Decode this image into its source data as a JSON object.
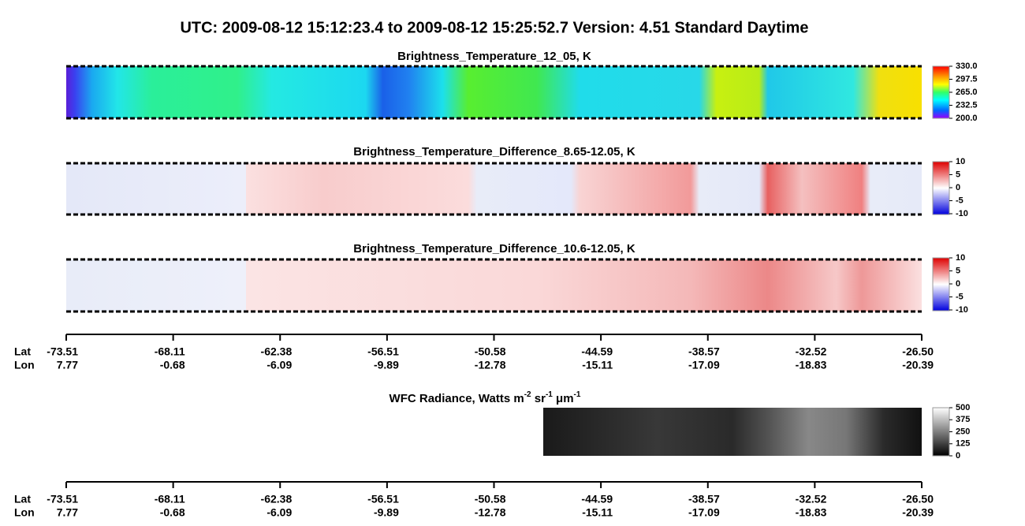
{
  "title": "UTC:  2009-08-12   15:12:23.4  to  2009-08-12   15:25:52.7    Version: 4.51  Standard Daytime",
  "panels": [
    {
      "title": "Brightness_Temperature_12_05, K",
      "colorbar_labels": [
        "330.0",
        "297.5",
        "265.0",
        "232.5",
        "200.0"
      ]
    },
    {
      "title": "Brightness_Temperature_Difference_8.65-12.05, K",
      "colorbar_labels": [
        "10",
        "5",
        "0",
        "-5",
        "-10"
      ]
    },
    {
      "title": "Brightness_Temperature_Difference_10.6-12.05, K",
      "colorbar_labels": [
        "10",
        "5",
        "0",
        "-5",
        "-10"
      ]
    }
  ],
  "axes": [
    {
      "lat_label": "Lat",
      "lon_label": "Lon",
      "lat": [
        "-73.51",
        "-68.11",
        "-62.38",
        "-56.51",
        "-50.58",
        "-44.59",
        "-38.57",
        "-32.52",
        "-26.50"
      ],
      "lon": [
        "7.77",
        "-0.68",
        "-6.09",
        "-9.89",
        "-12.78",
        "-15.11",
        "-17.09",
        "-18.83",
        "-20.39"
      ]
    },
    {
      "lat_label": "Lat",
      "lon_label": "Lon",
      "lat": [
        "-73.51",
        "-68.11",
        "-62.38",
        "-56.51",
        "-50.58",
        "-44.59",
        "-38.57",
        "-32.52",
        "-26.50"
      ],
      "lon": [
        "7.77",
        "-0.68",
        "-6.09",
        "-9.89",
        "-12.78",
        "-15.11",
        "-17.09",
        "-18.83",
        "-20.39"
      ]
    }
  ],
  "wfc": {
    "title": {
      "text1": "WFC Radiance, Watts m",
      "sup1": "-2",
      "text2": " sr",
      "sup2": "-1",
      "text3": " μm",
      "sup3": "-1"
    },
    "colorbar_labels": [
      "500",
      "375",
      "250",
      "125",
      "0"
    ]
  }
}
